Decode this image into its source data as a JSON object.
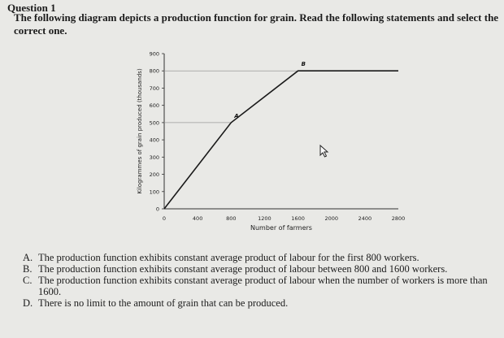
{
  "question": {
    "title": "Question 1",
    "prompt": "The following diagram depicts a production function for grain. Read the following statements and select the correct one."
  },
  "chart_data": {
    "type": "line",
    "xlabel": "Number of farmers",
    "ylabel": "Kilogrammes of grain produced (thousands)",
    "xlim": [
      0,
      2800
    ],
    "ylim": [
      0,
      900
    ],
    "xticks": [
      0,
      400,
      800,
      1200,
      1600,
      2000,
      2400,
      2800
    ],
    "yticks": [
      0,
      100,
      200,
      300,
      400,
      500,
      600,
      700,
      800,
      900
    ],
    "series": [
      {
        "x": [
          0,
          800,
          1600,
          2800
        ],
        "y": [
          0,
          500,
          800,
          800
        ]
      }
    ],
    "annotations": [
      {
        "label": "A",
        "x": 800,
        "y": 500
      },
      {
        "label": "B",
        "x": 1600,
        "y": 800
      }
    ],
    "reference_lines": "dashed grey lines at y=500 (x 0–800) and y=800 (x 0–1600)",
    "line_color": "#1a1a1a",
    "grid": false
  },
  "options": [
    {
      "letter": "A.",
      "text": "The production function exhibits constant average product of labour for the first 800 workers."
    },
    {
      "letter": "B.",
      "text": "The production function exhibits constant average product of labour between 800 and 1600 workers."
    },
    {
      "letter": "C.",
      "text": "The production function exhibits constant average product of labour when the number of workers is more than 1600."
    },
    {
      "letter": "D.",
      "text": "There is no limit to the amount of grain that can be produced."
    }
  ],
  "icons": {
    "cursor": "mouse-pointer-icon"
  }
}
